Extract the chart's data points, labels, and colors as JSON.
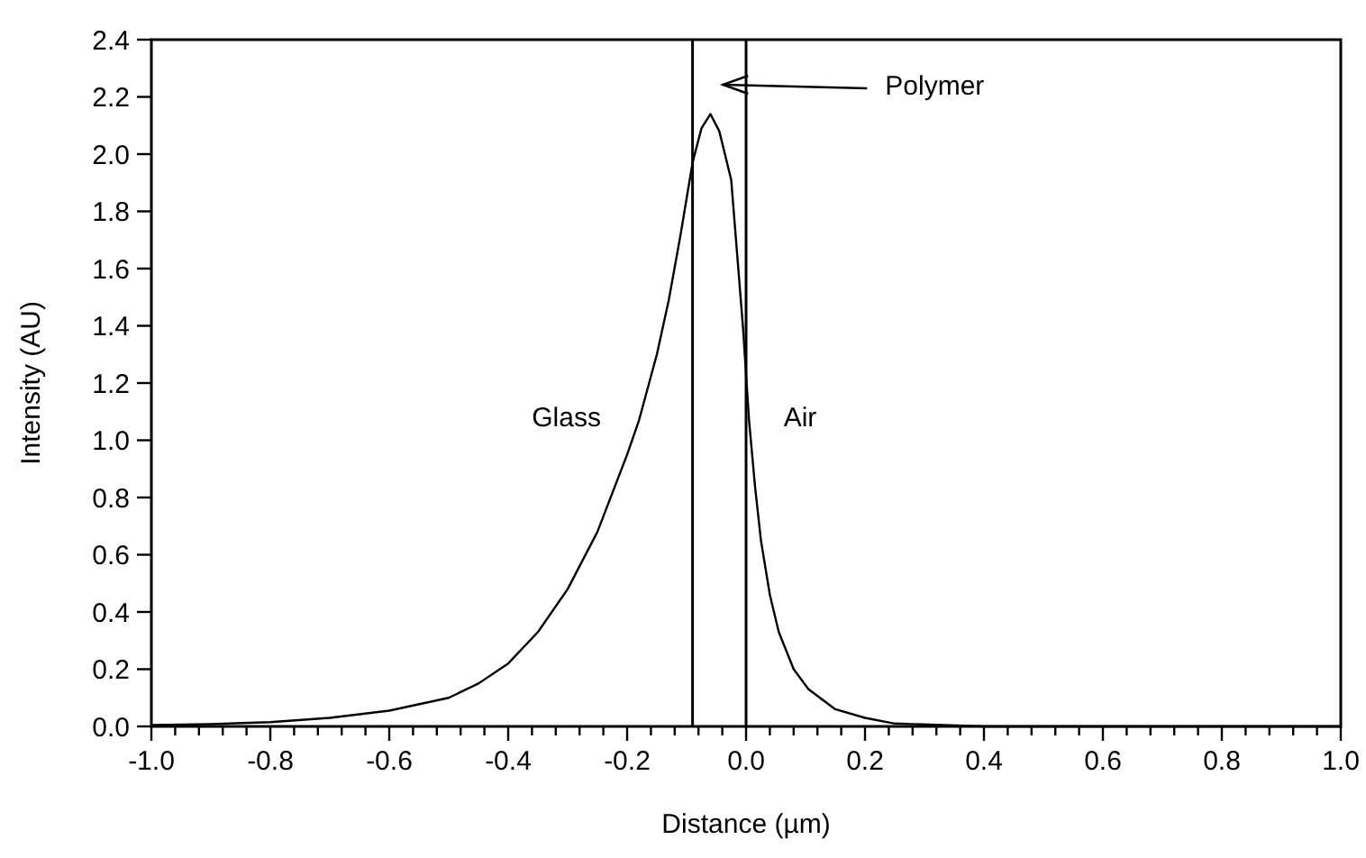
{
  "chart_data": {
    "type": "line",
    "xlabel": "Distance (µm)",
    "ylabel": "Intensity (AU)",
    "x": [
      -1.0,
      -0.9,
      -0.8,
      -0.7,
      -0.6,
      -0.5,
      -0.45,
      -0.4,
      -0.35,
      -0.3,
      -0.25,
      -0.2,
      -0.18,
      -0.15,
      -0.13,
      -0.11,
      -0.09,
      -0.075,
      -0.06,
      -0.045,
      -0.025,
      -0.005,
      0.005,
      0.015,
      0.025,
      0.04,
      0.055,
      0.08,
      0.105,
      0.15,
      0.2,
      0.25,
      0.4,
      0.6,
      0.8,
      1.0
    ],
    "series": [
      {
        "color": "#000000",
        "values": [
          0.005,
          0.008,
          0.015,
          0.03,
          0.055,
          0.1,
          0.15,
          0.22,
          0.33,
          0.48,
          0.68,
          0.95,
          1.07,
          1.3,
          1.49,
          1.72,
          1.97,
          2.09,
          2.14,
          2.08,
          1.91,
          1.39,
          1.07,
          0.84,
          0.65,
          0.46,
          0.33,
          0.2,
          0.13,
          0.06,
          0.03,
          0.01,
          0.0,
          0.0,
          0.0,
          0.0
        ]
      }
    ],
    "xlim": [
      -1.0,
      1.0
    ],
    "ylim": [
      0.0,
      2.4
    ],
    "xticks": [
      {
        "value": -1.0,
        "label": "-1.0"
      },
      {
        "value": -0.96,
        "label": null
      },
      {
        "value": -0.92,
        "label": null
      },
      {
        "value": -0.88,
        "label": null
      },
      {
        "value": -0.84,
        "label": null
      },
      {
        "value": -0.8,
        "label": "-0.8"
      },
      {
        "value": -0.76,
        "label": null
      },
      {
        "value": -0.72,
        "label": null
      },
      {
        "value": -0.68,
        "label": null
      },
      {
        "value": -0.64,
        "label": null
      },
      {
        "value": -0.6,
        "label": "-0.6"
      },
      {
        "value": -0.56,
        "label": null
      },
      {
        "value": -0.52,
        "label": null
      },
      {
        "value": -0.48,
        "label": null
      },
      {
        "value": -0.44,
        "label": null
      },
      {
        "value": -0.4,
        "label": "-0.4"
      },
      {
        "value": -0.36,
        "label": null
      },
      {
        "value": -0.32,
        "label": null
      },
      {
        "value": -0.28,
        "label": null
      },
      {
        "value": -0.24,
        "label": null
      },
      {
        "value": -0.2,
        "label": "-0.2"
      },
      {
        "value": -0.16,
        "label": null
      },
      {
        "value": -0.12,
        "label": null
      },
      {
        "value": -0.08,
        "label": null
      },
      {
        "value": -0.04,
        "label": null
      },
      {
        "value": 0.0,
        "label": "0.0"
      },
      {
        "value": 0.04,
        "label": null
      },
      {
        "value": 0.08,
        "label": null
      },
      {
        "value": 0.12,
        "label": null
      },
      {
        "value": 0.16,
        "label": null
      },
      {
        "value": 0.2,
        "label": "0.2"
      },
      {
        "value": 0.24,
        "label": null
      },
      {
        "value": 0.28,
        "label": null
      },
      {
        "value": 0.32,
        "label": null
      },
      {
        "value": 0.36,
        "label": null
      },
      {
        "value": 0.4,
        "label": "0.4"
      },
      {
        "value": 0.44,
        "label": null
      },
      {
        "value": 0.48,
        "label": null
      },
      {
        "value": 0.52,
        "label": null
      },
      {
        "value": 0.56,
        "label": null
      },
      {
        "value": 0.6,
        "label": "0.6"
      },
      {
        "value": 0.64,
        "label": null
      },
      {
        "value": 0.68,
        "label": null
      },
      {
        "value": 0.72,
        "label": null
      },
      {
        "value": 0.76,
        "label": null
      },
      {
        "value": 0.8,
        "label": "0.8"
      },
      {
        "value": 0.84,
        "label": null
      },
      {
        "value": 0.88,
        "label": null
      },
      {
        "value": 0.92,
        "label": null
      },
      {
        "value": 0.96,
        "label": null
      },
      {
        "value": 1.0,
        "label": "1.0"
      }
    ],
    "yticks": [
      {
        "value": 0.0,
        "label": "0.0"
      },
      {
        "value": 0.2,
        "label": "0.2"
      },
      {
        "value": 0.4,
        "label": "0.4"
      },
      {
        "value": 0.6,
        "label": "0.6"
      },
      {
        "value": 0.8,
        "label": "0.8"
      },
      {
        "value": 1.0,
        "label": "1.0"
      },
      {
        "value": 1.2,
        "label": "1.2"
      },
      {
        "value": 1.4,
        "label": "1.4"
      },
      {
        "value": 1.6,
        "label": "1.6"
      },
      {
        "value": 1.8,
        "label": "1.8"
      },
      {
        "value": 2.0,
        "label": "2.0"
      },
      {
        "value": 2.2,
        "label": "2.2"
      },
      {
        "value": 2.4,
        "label": "2.4"
      }
    ],
    "ref_lines": [
      {
        "axis": "x",
        "value": -0.09,
        "color": "#000000"
      },
      {
        "axis": "x",
        "value": 0.0,
        "color": "#000000"
      }
    ],
    "annotations": [
      "Glass",
      "Air",
      "Polymer"
    ],
    "grid": false,
    "marker": "none",
    "line_style": "solid"
  }
}
